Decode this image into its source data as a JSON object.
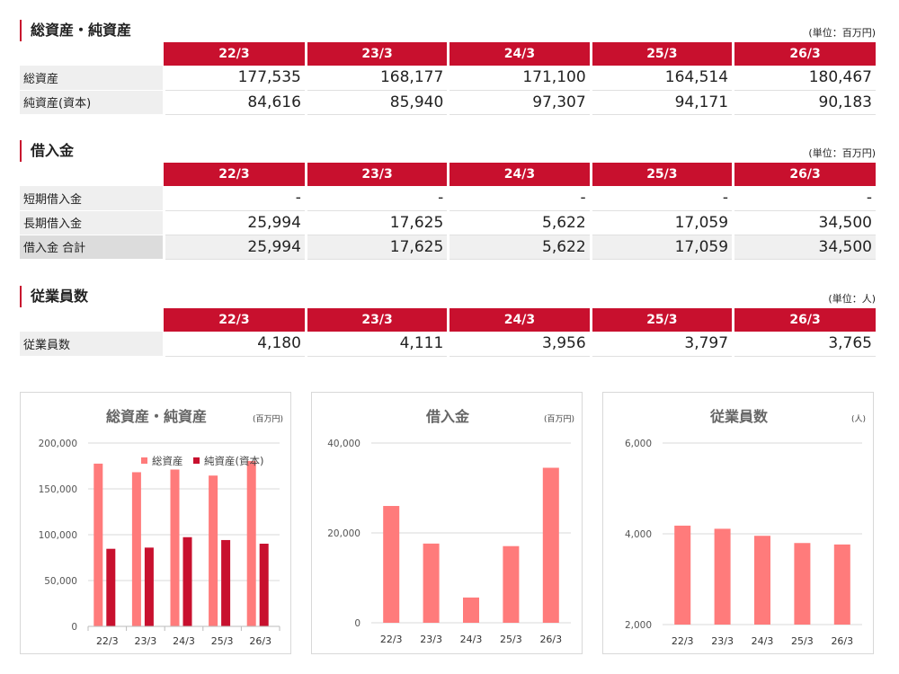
{
  "columns": [
    "22/3",
    "23/3",
    "24/3",
    "25/3",
    "26/3"
  ],
  "assets": {
    "title": "総資産・純資産",
    "unit": "(単位：百万円)",
    "rows": [
      {
        "label": "総資産",
        "values": [
          "177,535",
          "168,177",
          "171,100",
          "164,514",
          "180,467"
        ]
      },
      {
        "label": "純資産(資本)",
        "values": [
          "84,616",
          "85,940",
          "97,307",
          "94,171",
          "90,183"
        ]
      }
    ]
  },
  "debt": {
    "title": "借入金",
    "unit": "(単位：百万円)",
    "rows": [
      {
        "label": "短期借入金",
        "values": [
          "-",
          "-",
          "-",
          "-",
          "-"
        ]
      },
      {
        "label": "長期借入金",
        "values": [
          "25,994",
          "17,625",
          "5,622",
          "17,059",
          "34,500"
        ]
      },
      {
        "label": "借入金 合計",
        "values": [
          "25,994",
          "17,625",
          "5,622",
          "17,059",
          "34,500"
        ]
      }
    ]
  },
  "employees": {
    "title": "従業員数",
    "unit": "(単位：人)",
    "rows": [
      {
        "label": "従業員数",
        "values": [
          "4,180",
          "4,111",
          "3,956",
          "3,797",
          "3,765"
        ]
      }
    ]
  },
  "chart_data": [
    {
      "type": "bar",
      "title": "総資産・純資産",
      "unit": "(百万円)",
      "categories": [
        "22/3",
        "23/3",
        "24/3",
        "25/3",
        "26/3"
      ],
      "series": [
        {
          "name": "総資産",
          "values": [
            177535,
            168177,
            171100,
            164514,
            180467
          ],
          "color": "#ff7b7b"
        },
        {
          "name": "純資産(資本)",
          "values": [
            84616,
            85940,
            97307,
            94171,
            90183
          ],
          "color": "#c8102e"
        }
      ],
      "ylim": [
        0,
        200000
      ],
      "yticks": [
        0,
        50000,
        100000,
        150000,
        200000
      ],
      "ytick_labels": [
        "0",
        "50,000",
        "100,000",
        "150,000",
        "200,000"
      ],
      "legend": "top-right",
      "grid": true
    },
    {
      "type": "bar",
      "title": "借入金",
      "unit": "(百万円)",
      "categories": [
        "22/3",
        "23/3",
        "24/3",
        "25/3",
        "26/3"
      ],
      "series": [
        {
          "values": [
            25994,
            17625,
            5622,
            17059,
            34500
          ],
          "color": "#ff7b7b"
        }
      ],
      "ylim": [
        0,
        40000
      ],
      "yticks": [
        0,
        20000,
        40000
      ],
      "ytick_labels": [
        "0",
        "20,000",
        "40,000"
      ],
      "grid": true
    },
    {
      "type": "bar",
      "title": "従業員数",
      "unit": "(人)",
      "categories": [
        "22/3",
        "23/3",
        "24/3",
        "25/3",
        "26/3"
      ],
      "series": [
        {
          "values": [
            4180,
            4111,
            3956,
            3797,
            3765
          ],
          "color": "#ff7b7b"
        }
      ],
      "ylim": [
        2000,
        6000
      ],
      "yticks": [
        2000,
        4000,
        6000
      ],
      "ytick_labels": [
        "2,000",
        "4,000",
        "6,000"
      ],
      "grid": true
    }
  ]
}
